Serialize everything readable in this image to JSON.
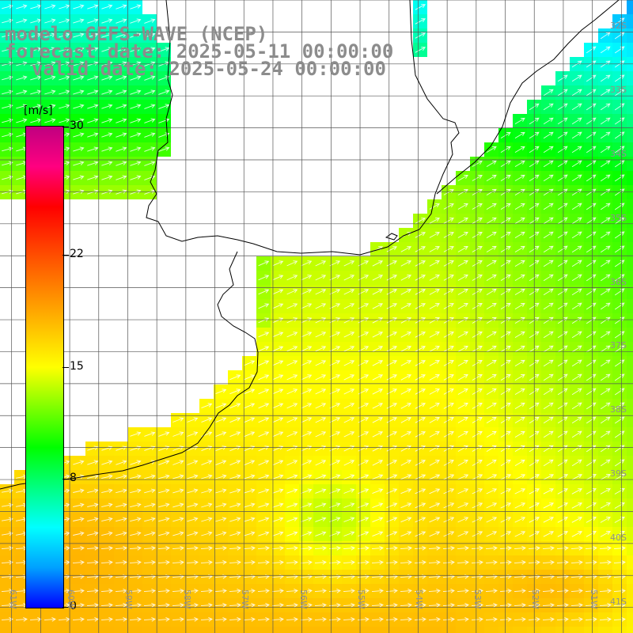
{
  "title": {
    "line1": "modelo GEFS-WAVE (NCEP)",
    "line2": "forecast date: 2025-05-11 00:00:00",
    "line3": "valid date: 2025-05-24 00:00:00"
  },
  "colorbar": {
    "unit": "[m/s]",
    "min": 0,
    "max": 30,
    "labels": [
      "30",
      "22",
      "15",
      "8",
      "0"
    ],
    "label_values": [
      30,
      22,
      15,
      8,
      0
    ],
    "colors": [
      "#0000ff",
      "#00a0ff",
      "#00ffff",
      "#00ff80",
      "#00ff00",
      "#80ff00",
      "#ffff00",
      "#ffc000",
      "#ff8000",
      "#ff4000",
      "#ff0000",
      "#ff0080",
      "#c00080"
    ]
  },
  "axes": {
    "lat_labels": [
      "32S",
      "33S",
      "34S",
      "35S",
      "36S",
      "37S",
      "38S",
      "39S",
      "40S",
      "41S"
    ],
    "lat_values": [
      -32,
      -33,
      -34,
      -35,
      -36,
      -37,
      -38,
      -39,
      -40,
      -41
    ],
    "lon_labels": [
      "61W",
      "60W",
      "59W",
      "58W",
      "57W",
      "56W",
      "55W",
      "54W",
      "53W",
      "52W",
      "51W"
    ],
    "lon_values": [
      -61,
      -60,
      -59,
      -58,
      -57,
      -56,
      -55,
      -54,
      -53,
      -52,
      -51
    ],
    "lat_range": [
      -31.5,
      -41.4
    ],
    "lon_range": [
      -61.2,
      -50.3
    ],
    "grid": true,
    "field": "wind speed (m/s) with wind direction arrows"
  }
}
